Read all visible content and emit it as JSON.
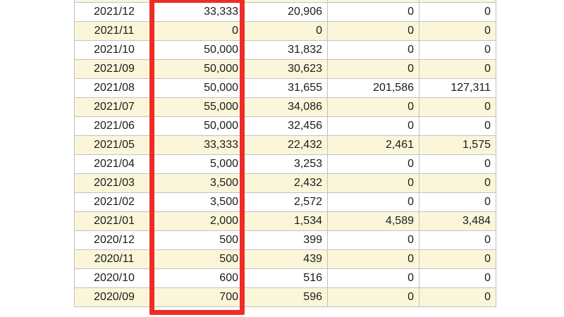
{
  "colors": {
    "alt_row": "#fbf6d9",
    "border": "#c2c2c2",
    "text": "#1b1b1b",
    "highlight": "#ee2c26"
  },
  "table": {
    "rows": [
      {
        "date": "2021/12",
        "values": [
          "33,333",
          "20,906",
          "0",
          "0"
        ]
      },
      {
        "date": "2021/11",
        "values": [
          "0",
          "0",
          "0",
          "0"
        ]
      },
      {
        "date": "2021/10",
        "values": [
          "50,000",
          "31,832",
          "0",
          "0"
        ]
      },
      {
        "date": "2021/09",
        "values": [
          "50,000",
          "30,623",
          "0",
          "0"
        ]
      },
      {
        "date": "2021/08",
        "values": [
          "50,000",
          "31,655",
          "201,586",
          "127,311"
        ]
      },
      {
        "date": "2021/07",
        "values": [
          "55,000",
          "34,086",
          "0",
          "0"
        ]
      },
      {
        "date": "2021/06",
        "values": [
          "50,000",
          "32,456",
          "0",
          "0"
        ]
      },
      {
        "date": "2021/05",
        "values": [
          "33,333",
          "22,432",
          "2,461",
          "1,575"
        ]
      },
      {
        "date": "2021/04",
        "values": [
          "5,000",
          "3,253",
          "0",
          "0"
        ]
      },
      {
        "date": "2021/03",
        "values": [
          "3,500",
          "2,432",
          "0",
          "0"
        ]
      },
      {
        "date": "2021/02",
        "values": [
          "3,500",
          "2,572",
          "0",
          "0"
        ]
      },
      {
        "date": "2021/01",
        "values": [
          "2,000",
          "1,534",
          "4,589",
          "3,484"
        ]
      },
      {
        "date": "2020/12",
        "values": [
          "500",
          "399",
          "0",
          "0"
        ]
      },
      {
        "date": "2020/11",
        "values": [
          "500",
          "439",
          "0",
          "0"
        ]
      },
      {
        "date": "2020/10",
        "values": [
          "600",
          "516",
          "0",
          "0"
        ]
      },
      {
        "date": "2020/09",
        "values": [
          "700",
          "596",
          "0",
          "0"
        ]
      }
    ]
  }
}
